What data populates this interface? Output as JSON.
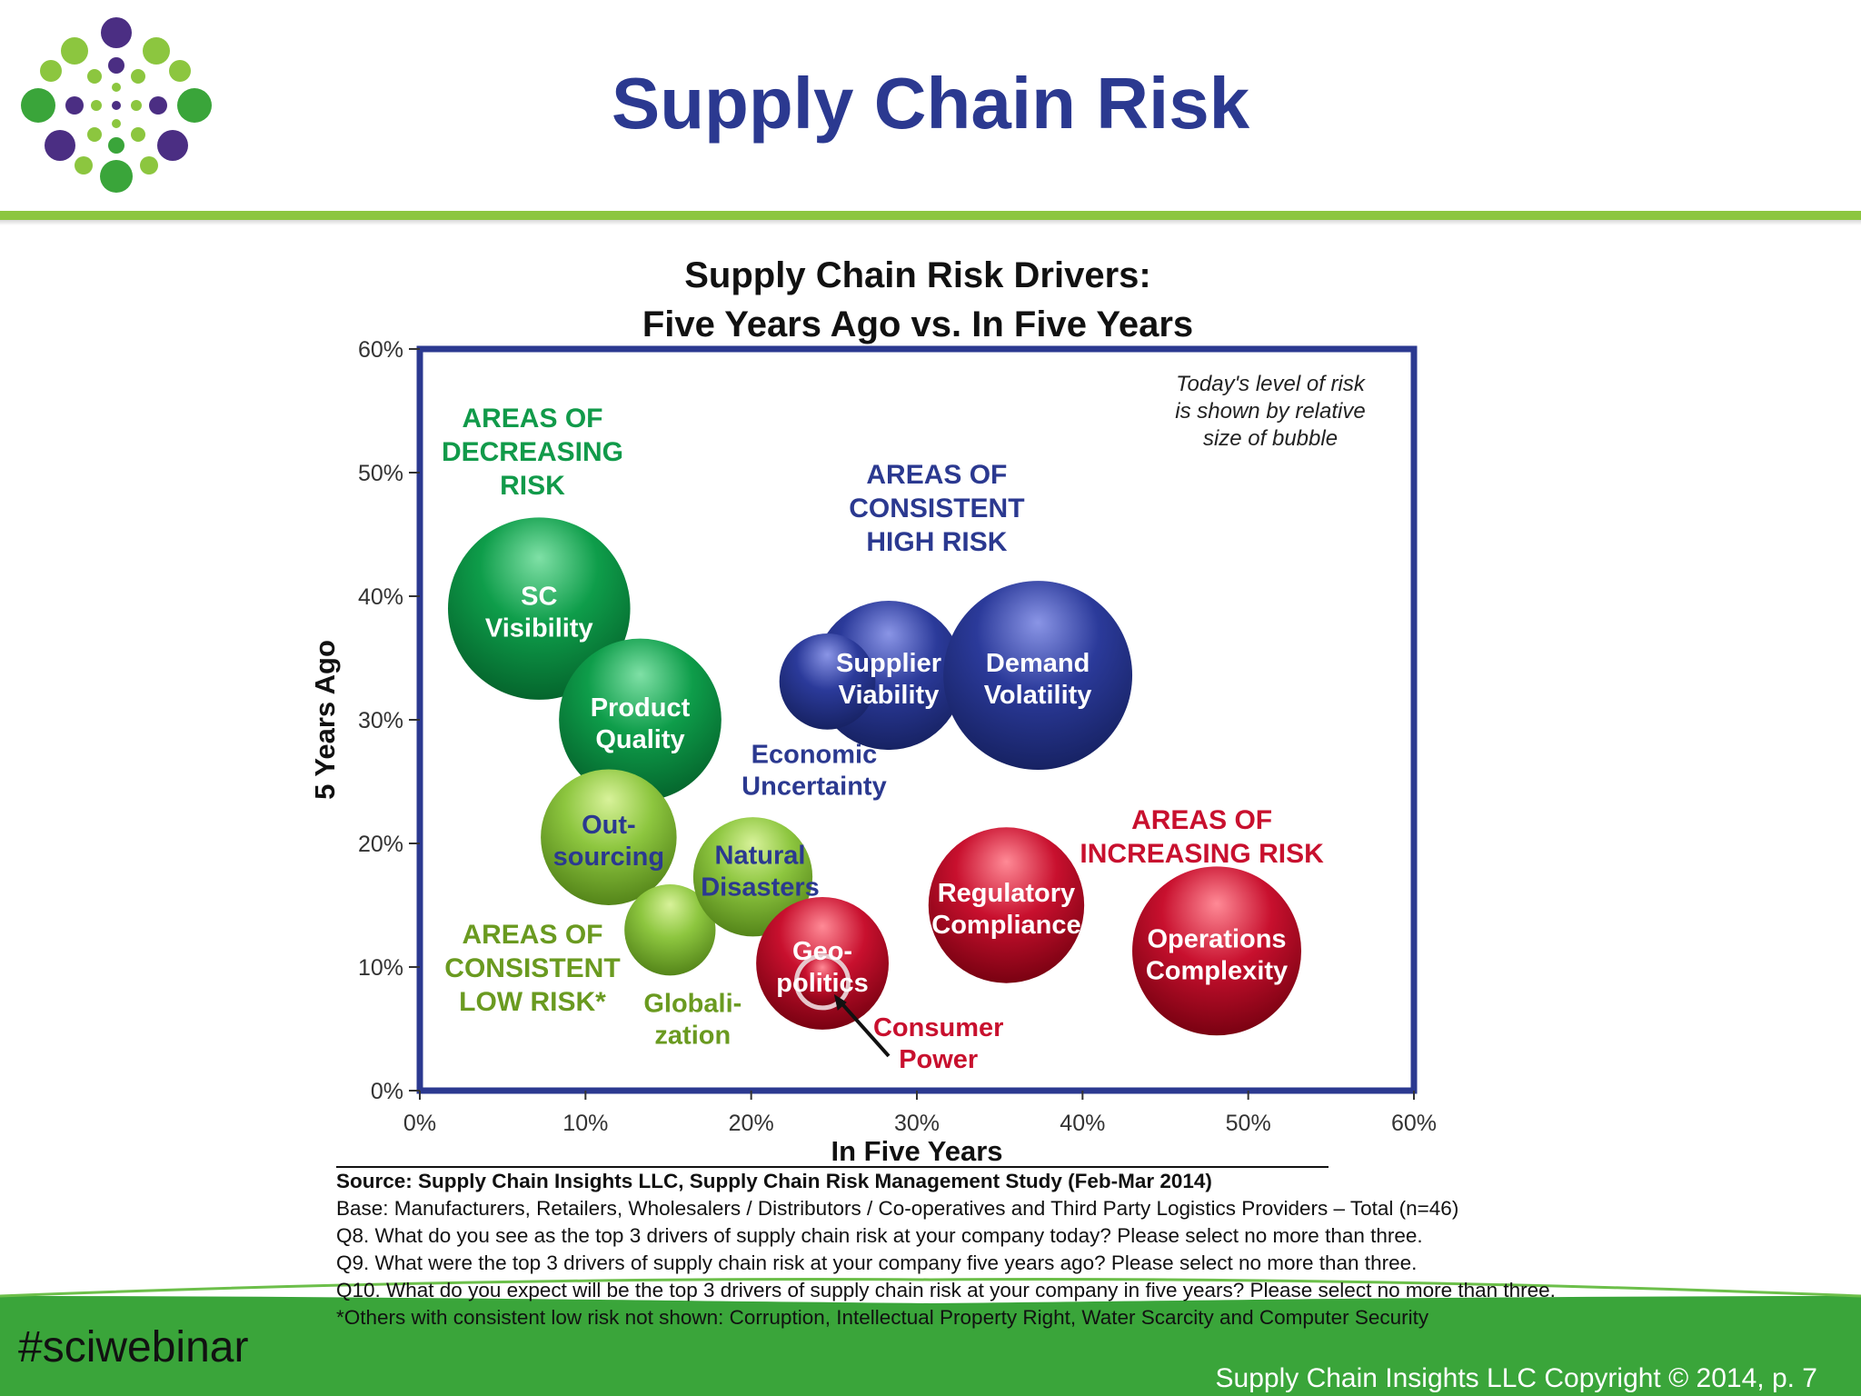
{
  "slide": {
    "title": "Supply Chain Risk",
    "hashtag": "#sciwebinar",
    "copyright": "Supply Chain Insights LLC Copyright © 2014, p. 7"
  },
  "colors": {
    "title_blue": "#2b3990",
    "accent_green": "#8cc63f",
    "footer_green": "#3aa53a",
    "bubble_green": "#0e9d4a",
    "bubble_lightgreen": "#8dc63f",
    "bubble_blue": "#2b3a9a",
    "bubble_red": "#c8102e"
  },
  "chart_data": {
    "type": "scatter",
    "subtype": "bubble",
    "title": [
      "Supply Chain Risk Drivers:",
      "Five Years Ago vs. In Five Years"
    ],
    "xlabel": "In Five Years",
    "ylabel": "5 Years Ago",
    "xlim": [
      0,
      60
    ],
    "ylim": [
      0,
      60
    ],
    "x_ticks": [
      "0%",
      "10%",
      "20%",
      "30%",
      "40%",
      "50%",
      "60%"
    ],
    "y_ticks": [
      "0%",
      "10%",
      "20%",
      "30%",
      "40%",
      "50%",
      "60%"
    ],
    "grid": false,
    "note": [
      "Today's level of risk",
      "is shown by relative",
      "size of bubble"
    ],
    "bubbles": [
      {
        "label": [
          "SC",
          "Visibility"
        ],
        "x": 7.2,
        "y": 39,
        "size": 11.0,
        "group": "decreasing"
      },
      {
        "label": [
          "Product",
          "Quality"
        ],
        "x": 13.3,
        "y": 30,
        "size": 9.8,
        "group": "decreasing"
      },
      {
        "label": [
          "Out-",
          "sourcing"
        ],
        "x": 11.4,
        "y": 20.5,
        "size": 8.2,
        "group": "low"
      },
      {
        "label": [
          "Natural",
          "Disasters"
        ],
        "x": 20.1,
        "y": 17.3,
        "size": 7.2,
        "group": "low"
      },
      {
        "label": [
          "Globali-",
          "zation"
        ],
        "x": 15.1,
        "y": 13,
        "size": 5.5,
        "group": "low"
      },
      {
        "label": [
          "Supplier",
          "Viability"
        ],
        "x": 28.3,
        "y": 33.6,
        "size": 9.0,
        "group": "high"
      },
      {
        "label": [
          "Demand",
          "Volatility"
        ],
        "x": 37.3,
        "y": 33.6,
        "size": 11.4,
        "group": "high"
      },
      {
        "label": [
          "Economic",
          "Uncertainty"
        ],
        "x": 24.6,
        "y": 33.1,
        "size": 5.8,
        "group": "high"
      },
      {
        "label": [
          "Regulatory",
          "Compliance"
        ],
        "x": 35.4,
        "y": 15,
        "size": 9.4,
        "group": "increasing"
      },
      {
        "label": [
          "Operations",
          "Complexity"
        ],
        "x": 48.1,
        "y": 11.3,
        "size": 10.2,
        "group": "increasing"
      },
      {
        "label": [
          "Geo-",
          "politics"
        ],
        "x": 24.3,
        "y": 10.3,
        "size": 8.0,
        "group": "increasing"
      },
      {
        "label": [
          "Consumer",
          "Power"
        ],
        "x": 24.3,
        "y": 8.8,
        "size": 2.7,
        "group": "increasing"
      }
    ],
    "region_labels": [
      {
        "text": [
          "AREAS OF",
          "DECREASING",
          "RISK"
        ],
        "group": "decreasing"
      },
      {
        "text": [
          "AREAS OF",
          "CONSISTENT",
          "HIGH RISK"
        ],
        "group": "high"
      },
      {
        "text": [
          "AREAS OF",
          "INCREASING RISK"
        ],
        "group": "increasing"
      },
      {
        "text": [
          "AREAS OF",
          "CONSISTENT",
          "LOW RISK*"
        ],
        "group": "low"
      }
    ]
  },
  "source": {
    "line1": "Source:  Supply Chain Insights LLC, Supply Chain Risk Management Study (Feb-Mar 2014)",
    "line2": "Base:  Manufacturers,  Retailers, Wholesalers / Distributors / Co-operatives and Third Party Logistics Providers – Total (n=46)",
    "line3": "Q8. What do you see as the top 3 drivers of supply chain risk at your company today?  Please select no more than three.",
    "line4": "Q9. What were the top 3 drivers of supply chain risk at your company five years ago?  Please select no more than three.",
    "line5": "Q10. What do you expect will be the top 3 drivers of supply chain risk at your company in five years?  Please select no more than three.",
    "line6": "*Others with consistent low risk not shown:  Corruption, Intellectual Property Right, Water Scarcity and Computer Security"
  }
}
